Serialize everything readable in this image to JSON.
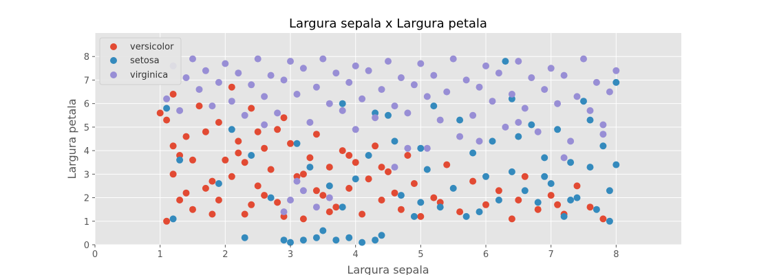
{
  "chart_data": {
    "type": "scatter",
    "title": "Largura sepala x Largura petala",
    "xlabel": "Largura sepala",
    "ylabel": "Largura petala",
    "xlim": [
      0,
      9
    ],
    "ylim": [
      0,
      9
    ],
    "x_ticks": [
      0,
      1,
      2,
      3,
      4,
      5,
      6,
      7,
      8
    ],
    "y_ticks": [
      0,
      1,
      2,
      3,
      4,
      5,
      6,
      7,
      8
    ],
    "grid": true,
    "legend": "top-left",
    "series": [
      {
        "name": "versicolor",
        "color": "#E24A33",
        "points": [
          [
            1.0,
            5.6
          ],
          [
            1.1,
            5.3
          ],
          [
            1.2,
            4.2
          ],
          [
            1.3,
            3.8
          ],
          [
            1.4,
            2.2
          ],
          [
            1.5,
            1.5
          ],
          [
            1.1,
            1.0
          ],
          [
            1.2,
            3.0
          ],
          [
            1.6,
            5.9
          ],
          [
            1.7,
            4.8
          ],
          [
            1.8,
            2.7
          ],
          [
            1.9,
            1.9
          ],
          [
            2.0,
            3.6
          ],
          [
            2.1,
            6.7
          ],
          [
            2.2,
            4.4
          ],
          [
            2.3,
            1.3
          ],
          [
            2.4,
            5.8
          ],
          [
            2.5,
            2.5
          ],
          [
            2.6,
            4.1
          ],
          [
            2.7,
            3.2
          ],
          [
            2.8,
            1.8
          ],
          [
            2.9,
            5.4
          ],
          [
            3.0,
            4.3
          ],
          [
            3.1,
            2.9
          ],
          [
            3.2,
            1.1
          ],
          [
            3.3,
            3.7
          ],
          [
            3.4,
            4.7
          ],
          [
            3.5,
            2.1
          ],
          [
            3.6,
            3.3
          ],
          [
            3.7,
            1.6
          ],
          [
            3.8,
            4.0
          ],
          [
            3.9,
            2.4
          ],
          [
            4.0,
            3.5
          ],
          [
            4.1,
            1.3
          ],
          [
            4.2,
            2.8
          ],
          [
            4.3,
            4.2
          ],
          [
            4.4,
            1.9
          ],
          [
            4.5,
            3.1
          ],
          [
            4.6,
            2.2
          ],
          [
            4.7,
            1.5
          ],
          [
            4.8,
            3.8
          ],
          [
            4.9,
            2.6
          ],
          [
            5.0,
            1.2
          ],
          [
            5.2,
            2.0
          ],
          [
            5.4,
            3.4
          ],
          [
            5.6,
            1.4
          ],
          [
            5.8,
            2.7
          ],
          [
            6.0,
            1.7
          ],
          [
            6.2,
            2.3
          ],
          [
            6.4,
            1.1
          ],
          [
            6.6,
            2.9
          ],
          [
            6.8,
            1.5
          ],
          [
            7.0,
            2.1
          ],
          [
            7.2,
            1.3
          ],
          [
            7.4,
            2.5
          ],
          [
            7.6,
            1.6
          ],
          [
            7.8,
            1.1
          ],
          [
            1.5,
            3.6
          ],
          [
            2.2,
            3.9
          ],
          [
            2.6,
            2.1
          ],
          [
            1.3,
            1.9
          ],
          [
            1.9,
            5.2
          ],
          [
            2.8,
            4.9
          ],
          [
            3.2,
            3.0
          ],
          [
            1.7,
            2.4
          ],
          [
            2.4,
            1.7
          ],
          [
            3.6,
            1.4
          ],
          [
            2.1,
            2.9
          ],
          [
            1.4,
            4.6
          ],
          [
            2.9,
            1.2
          ],
          [
            3.4,
            2.3
          ],
          [
            1.2,
            6.4
          ],
          [
            2.5,
            4.8
          ],
          [
            3.9,
            3.8
          ],
          [
            1.8,
            1.3
          ],
          [
            2.3,
            3.5
          ],
          [
            4.4,
            3.3
          ],
          [
            5.3,
            1.8
          ],
          [
            6.5,
            1.9
          ],
          [
            7.1,
            1.7
          ]
        ]
      },
      {
        "name": "setosa",
        "color": "#348ABD",
        "points": [
          [
            1.1,
            5.8
          ],
          [
            1.3,
            3.6
          ],
          [
            1.2,
            1.1
          ],
          [
            1.9,
            2.6
          ],
          [
            2.3,
            0.3
          ],
          [
            2.9,
            0.2
          ],
          [
            3.0,
            0.1
          ],
          [
            3.2,
            0.2
          ],
          [
            3.4,
            0.3
          ],
          [
            3.5,
            0.6
          ],
          [
            3.7,
            0.2
          ],
          [
            3.9,
            0.3
          ],
          [
            4.1,
            0.1
          ],
          [
            4.3,
            0.2
          ],
          [
            4.4,
            0.4
          ],
          [
            3.1,
            4.3
          ],
          [
            3.3,
            3.3
          ],
          [
            3.6,
            2.5
          ],
          [
            3.8,
            1.6
          ],
          [
            4.0,
            2.8
          ],
          [
            4.2,
            3.8
          ],
          [
            4.5,
            5.5
          ],
          [
            4.7,
            2.1
          ],
          [
            4.9,
            1.2
          ],
          [
            5.0,
            4.1
          ],
          [
            5.1,
            3.2
          ],
          [
            5.3,
            1.6
          ],
          [
            5.5,
            2.4
          ],
          [
            5.6,
            5.3
          ],
          [
            5.8,
            3.9
          ],
          [
            5.9,
            1.4
          ],
          [
            6.0,
            2.9
          ],
          [
            6.1,
            4.4
          ],
          [
            6.2,
            1.9
          ],
          [
            6.3,
            7.8
          ],
          [
            6.4,
            3.1
          ],
          [
            6.5,
            4.6
          ],
          [
            6.6,
            2.3
          ],
          [
            6.7,
            5.1
          ],
          [
            6.8,
            1.8
          ],
          [
            6.9,
            3.7
          ],
          [
            7.0,
            2.6
          ],
          [
            7.1,
            4.9
          ],
          [
            7.2,
            1.2
          ],
          [
            7.3,
            3.5
          ],
          [
            7.4,
            2.0
          ],
          [
            7.5,
            6.1
          ],
          [
            7.6,
            3.3
          ],
          [
            7.7,
            1.5
          ],
          [
            7.8,
            4.2
          ],
          [
            7.9,
            2.3
          ],
          [
            8.0,
            6.9
          ],
          [
            8.0,
            3.4
          ],
          [
            7.9,
            1.0
          ],
          [
            2.4,
            3.8
          ],
          [
            2.7,
            2.0
          ],
          [
            2.1,
            4.9
          ],
          [
            4.6,
            4.4
          ],
          [
            5.2,
            5.9
          ],
          [
            5.7,
            1.2
          ],
          [
            6.4,
            6.2
          ],
          [
            7.6,
            5.3
          ],
          [
            4.3,
            5.6
          ],
          [
            3.8,
            6.0
          ],
          [
            5.0,
            1.8
          ],
          [
            6.9,
            2.9
          ],
          [
            7.3,
            1.9
          ]
        ]
      },
      {
        "name": "virginica",
        "color": "#988ED5",
        "points": [
          [
            1.1,
            6.2
          ],
          [
            1.2,
            7.6
          ],
          [
            1.3,
            5.7
          ],
          [
            1.4,
            7.1
          ],
          [
            1.5,
            7.9
          ],
          [
            1.6,
            6.6
          ],
          [
            1.7,
            7.4
          ],
          [
            1.8,
            5.9
          ],
          [
            1.9,
            6.9
          ],
          [
            2.0,
            7.7
          ],
          [
            2.1,
            6.1
          ],
          [
            2.2,
            7.3
          ],
          [
            2.3,
            5.5
          ],
          [
            2.4,
            6.8
          ],
          [
            2.5,
            7.9
          ],
          [
            2.6,
            6.3
          ],
          [
            2.7,
            7.2
          ],
          [
            2.8,
            5.6
          ],
          [
            2.9,
            7.0
          ],
          [
            3.0,
            7.8
          ],
          [
            3.1,
            6.4
          ],
          [
            3.2,
            7.5
          ],
          [
            3.3,
            5.2
          ],
          [
            3.4,
            6.7
          ],
          [
            3.5,
            7.9
          ],
          [
            3.6,
            6.0
          ],
          [
            3.7,
            7.3
          ],
          [
            3.8,
            5.7
          ],
          [
            3.9,
            6.9
          ],
          [
            4.0,
            7.6
          ],
          [
            4.1,
            6.2
          ],
          [
            4.2,
            7.4
          ],
          [
            4.3,
            5.4
          ],
          [
            4.4,
            6.6
          ],
          [
            4.5,
            7.8
          ],
          [
            4.6,
            5.9
          ],
          [
            4.7,
            7.1
          ],
          [
            4.8,
            5.6
          ],
          [
            4.9,
            6.8
          ],
          [
            5.0,
            7.7
          ],
          [
            5.1,
            6.3
          ],
          [
            5.2,
            7.2
          ],
          [
            5.3,
            5.3
          ],
          [
            5.4,
            6.5
          ],
          [
            5.5,
            7.9
          ],
          [
            5.6,
            4.6
          ],
          [
            5.7,
            7.0
          ],
          [
            5.8,
            5.5
          ],
          [
            5.9,
            6.7
          ],
          [
            6.0,
            7.6
          ],
          [
            6.1,
            6.1
          ],
          [
            6.2,
            7.3
          ],
          [
            6.3,
            5.0
          ],
          [
            6.4,
            6.4
          ],
          [
            6.5,
            7.8
          ],
          [
            6.6,
            5.8
          ],
          [
            6.7,
            7.1
          ],
          [
            6.8,
            4.8
          ],
          [
            6.9,
            6.6
          ],
          [
            7.0,
            7.5
          ],
          [
            7.1,
            6.0
          ],
          [
            7.2,
            7.2
          ],
          [
            7.3,
            4.4
          ],
          [
            7.4,
            6.3
          ],
          [
            7.5,
            7.9
          ],
          [
            7.6,
            5.7
          ],
          [
            7.7,
            6.9
          ],
          [
            7.8,
            4.7
          ],
          [
            7.9,
            6.5
          ],
          [
            8.0,
            7.4
          ],
          [
            3.0,
            1.9
          ],
          [
            3.2,
            2.3
          ],
          [
            3.4,
            1.6
          ],
          [
            3.1,
            2.7
          ],
          [
            2.9,
            1.4
          ],
          [
            3.6,
            2.0
          ],
          [
            4.6,
            3.3
          ],
          [
            5.1,
            4.1
          ],
          [
            5.9,
            4.4
          ],
          [
            7.2,
            3.7
          ],
          [
            7.8,
            5.1
          ],
          [
            2.6,
            5.1
          ],
          [
            4.0,
            4.9
          ],
          [
            6.5,
            5.2
          ],
          [
            4.8,
            4.1
          ]
        ]
      }
    ]
  }
}
